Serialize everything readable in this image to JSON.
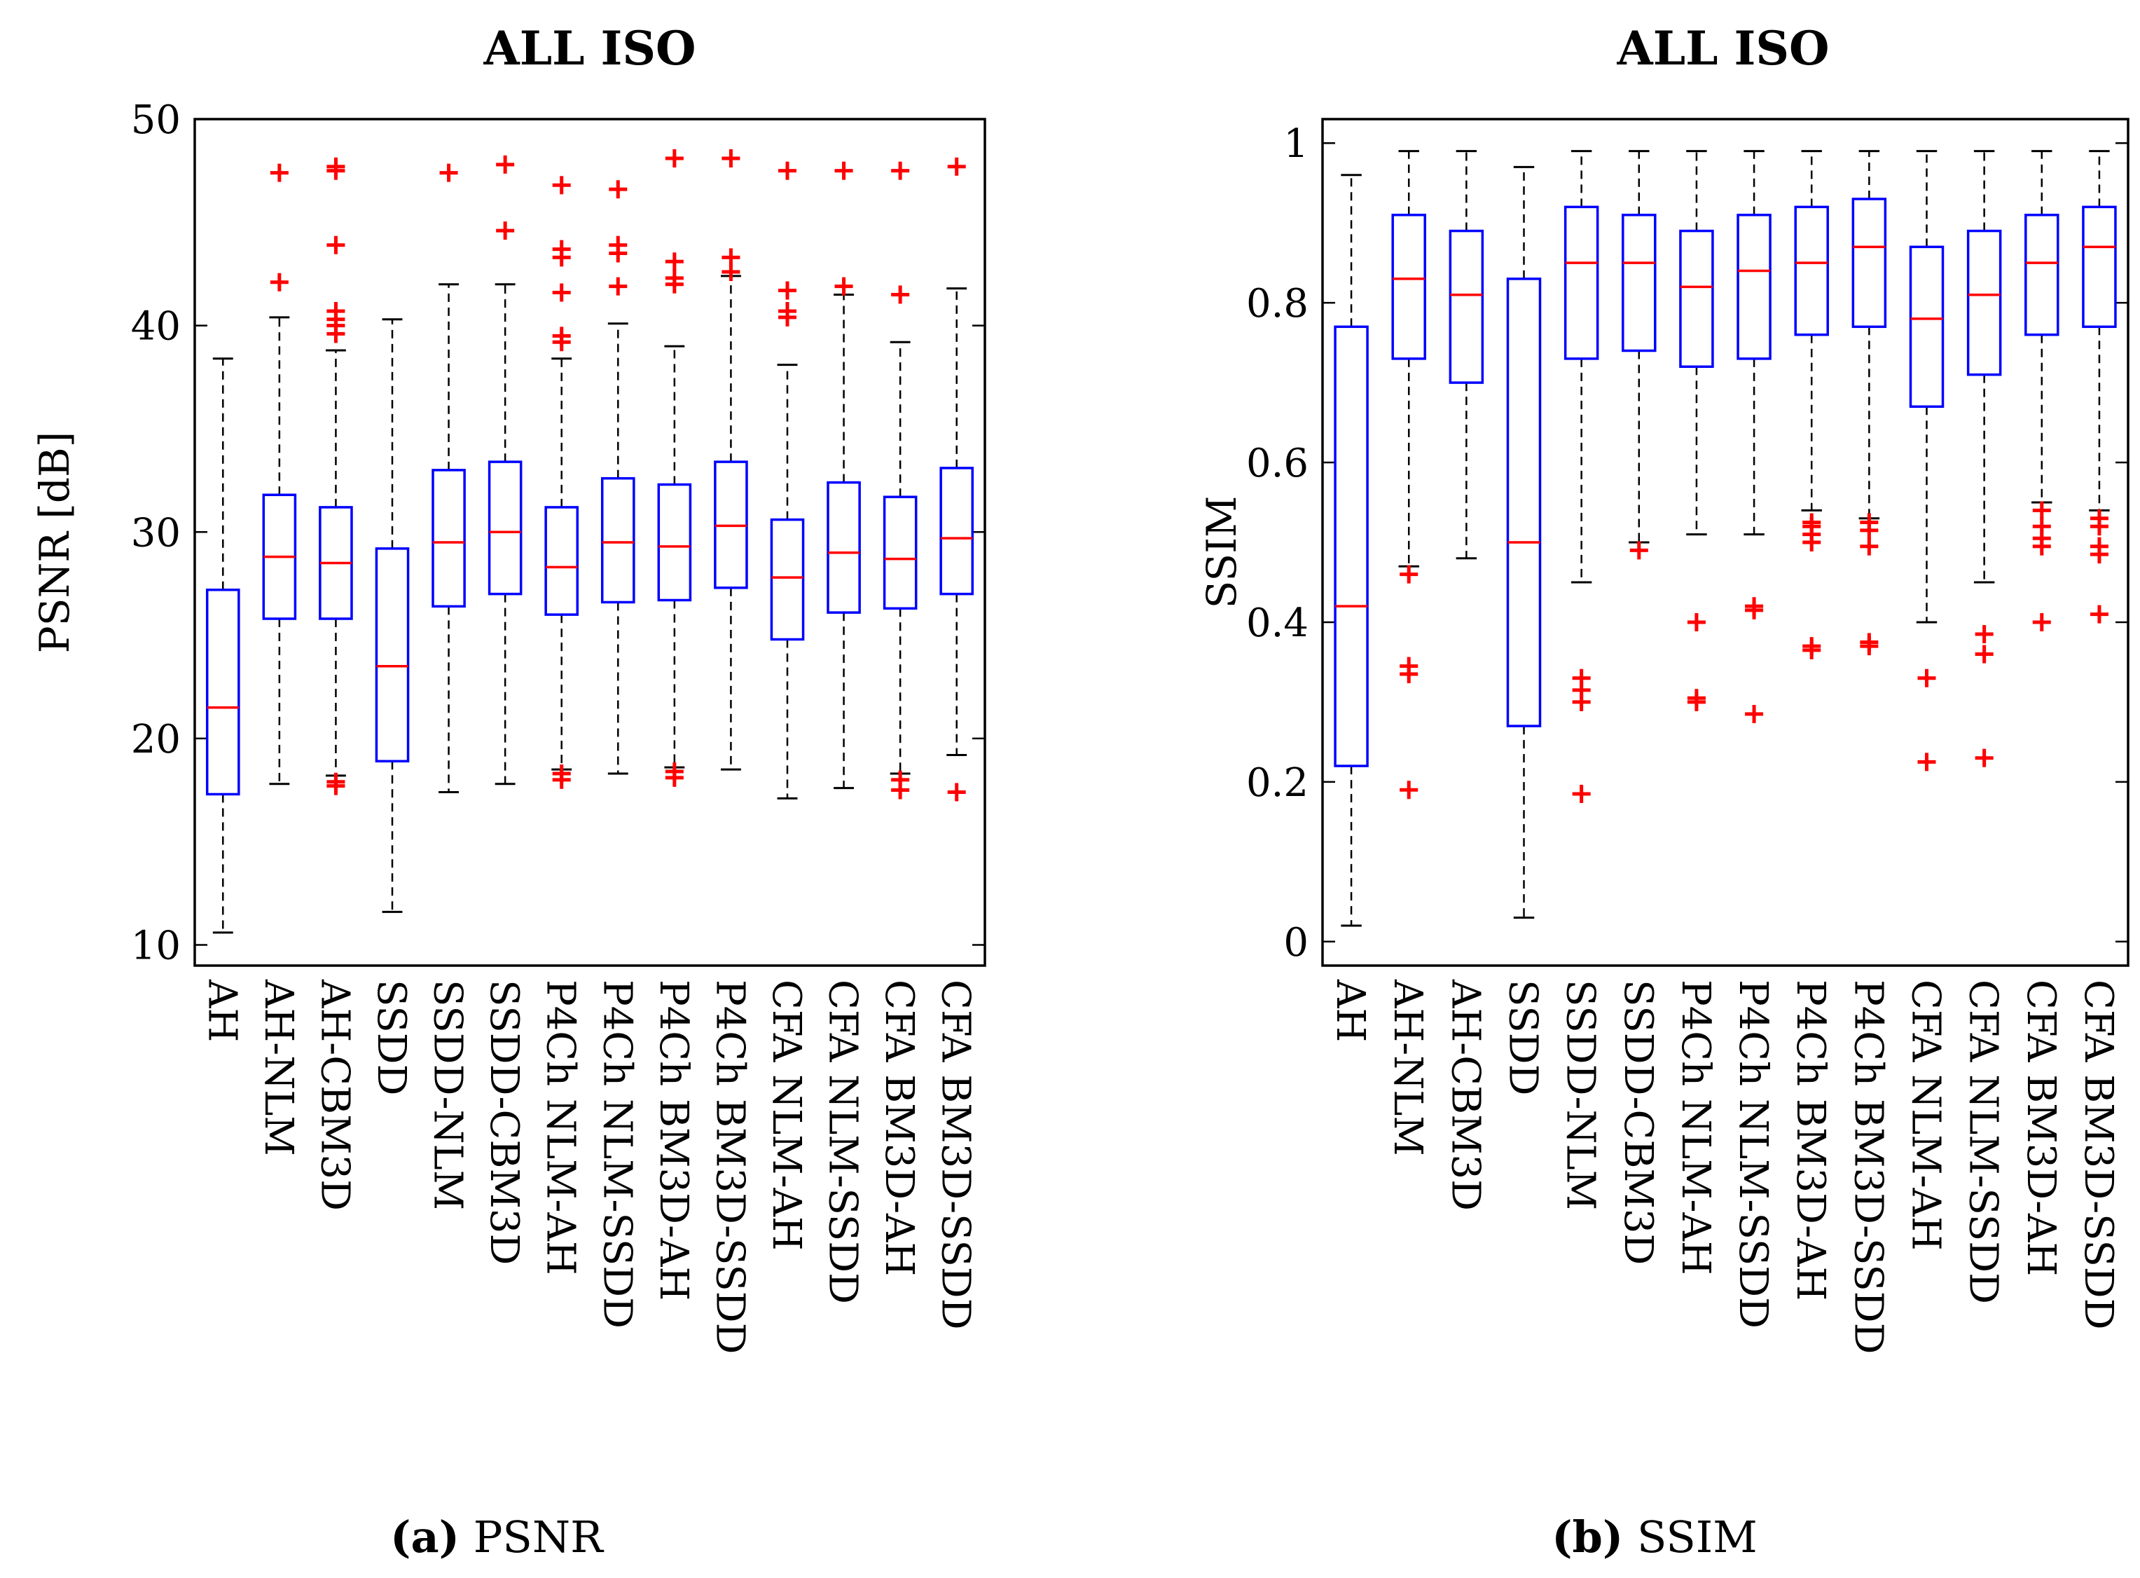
{
  "colors": {
    "box": "#0000ff",
    "median": "#ff0000",
    "outlier": "#ff0000",
    "whisker": "#000000",
    "frame": "#000000"
  },
  "chart_data": [
    {
      "type": "box",
      "title": "ALL ISO",
      "ylabel": "PSNR [dB]",
      "xlabel": "",
      "ylim": [
        9,
        50
      ],
      "yticks": [
        10,
        20,
        30,
        40,
        50
      ],
      "ytick_labels": [
        "10",
        "20",
        "30",
        "40",
        "50"
      ],
      "caption_letter": "(a)",
      "caption_text": "PSNR",
      "categories": [
        "AH",
        "AH-NLM",
        "AH-CBM3D",
        "SSDD",
        "SSDD-NLM",
        "SSDD-CBM3D",
        "P4Ch NLM-AH",
        "P4Ch NLM-SSDD",
        "P4Ch BM3D-AH",
        "P4Ch BM3D-SSDD",
        "CFA NLM-AH",
        "CFA NLM-SSDD",
        "CFA BM3D-AH",
        "CFA BM3D-SSDD"
      ],
      "boxes": [
        {
          "whislo": 10.6,
          "q1": 17.3,
          "med": 21.5,
          "q3": 27.2,
          "whishi": 38.4,
          "fliers": []
        },
        {
          "whislo": 17.8,
          "q1": 25.8,
          "med": 28.8,
          "q3": 31.8,
          "whishi": 40.4,
          "fliers": [
            42.1,
            47.4
          ]
        },
        {
          "whislo": 18.2,
          "q1": 25.8,
          "med": 28.5,
          "q3": 31.2,
          "whishi": 38.8,
          "fliers": [
            17.7,
            17.9,
            39.6,
            40.0,
            40.3,
            40.7,
            43.9,
            47.5,
            47.7
          ]
        },
        {
          "whislo": 11.6,
          "q1": 18.9,
          "med": 23.5,
          "q3": 29.2,
          "whishi": 40.3,
          "fliers": []
        },
        {
          "whislo": 17.4,
          "q1": 26.4,
          "med": 29.5,
          "q3": 33.0,
          "whishi": 42.0,
          "fliers": [
            47.4
          ]
        },
        {
          "whislo": 17.8,
          "q1": 27.0,
          "med": 30.0,
          "q3": 33.4,
          "whishi": 42.0,
          "fliers": [
            44.6,
            47.8
          ]
        },
        {
          "whislo": 18.5,
          "q1": 26.0,
          "med": 28.3,
          "q3": 31.2,
          "whishi": 38.4,
          "fliers": [
            18.0,
            18.3,
            39.2,
            39.5,
            41.6,
            43.3,
            43.7,
            46.8
          ]
        },
        {
          "whislo": 18.3,
          "q1": 26.6,
          "med": 29.5,
          "q3": 32.6,
          "whishi": 40.1,
          "fliers": [
            41.9,
            43.5,
            43.9,
            46.6
          ]
        },
        {
          "whislo": 18.6,
          "q1": 26.7,
          "med": 29.3,
          "q3": 32.3,
          "whishi": 39.0,
          "fliers": [
            18.1,
            18.4,
            42.0,
            42.3,
            43.1,
            48.1
          ]
        },
        {
          "whislo": 18.5,
          "q1": 27.3,
          "med": 30.3,
          "q3": 33.4,
          "whishi": 42.4,
          "fliers": [
            42.6,
            43.3,
            48.1
          ]
        },
        {
          "whislo": 17.1,
          "q1": 24.8,
          "med": 27.8,
          "q3": 30.6,
          "whishi": 38.1,
          "fliers": [
            40.4,
            40.7,
            41.7,
            47.5
          ]
        },
        {
          "whislo": 17.6,
          "q1": 26.1,
          "med": 29.0,
          "q3": 32.4,
          "whishi": 41.5,
          "fliers": [
            41.9,
            47.5
          ]
        },
        {
          "whislo": 18.3,
          "q1": 26.3,
          "med": 28.7,
          "q3": 31.7,
          "whishi": 39.2,
          "fliers": [
            17.5,
            18.0,
            41.5,
            47.5
          ]
        },
        {
          "whislo": 19.2,
          "q1": 27.0,
          "med": 29.7,
          "q3": 33.1,
          "whishi": 41.8,
          "fliers": [
            17.4,
            47.7
          ]
        }
      ]
    },
    {
      "type": "box",
      "title": "ALL ISO",
      "ylabel": "SSIM",
      "xlabel": "",
      "ylim": [
        -0.03,
        1.03
      ],
      "yticks": [
        0,
        0.2,
        0.4,
        0.6,
        0.8,
        1
      ],
      "ytick_labels": [
        "0",
        "0.2",
        "0.4",
        "0.6",
        "0.8",
        "1"
      ],
      "caption_letter": "(b)",
      "caption_text": "SSIM",
      "categories": [
        "AH",
        "AH-NLM",
        "AH-CBM3D",
        "SSDD",
        "SSDD-NLM",
        "SSDD-CBM3D",
        "P4Ch NLM-AH",
        "P4Ch NLM-SSDD",
        "P4Ch BM3D-AH",
        "P4Ch BM3D-SSDD",
        "CFA NLM-AH",
        "CFA NLM-SSDD",
        "CFA BM3D-AH",
        "CFA BM3D-SSDD"
      ],
      "boxes": [
        {
          "whislo": 0.02,
          "q1": 0.22,
          "med": 0.42,
          "q3": 0.77,
          "whishi": 0.96,
          "fliers": []
        },
        {
          "whislo": 0.47,
          "q1": 0.73,
          "med": 0.83,
          "q3": 0.91,
          "whishi": 0.99,
          "fliers": [
            0.19,
            0.335,
            0.345,
            0.46
          ]
        },
        {
          "whislo": 0.48,
          "q1": 0.7,
          "med": 0.81,
          "q3": 0.89,
          "whishi": 0.99,
          "fliers": []
        },
        {
          "whislo": 0.03,
          "q1": 0.27,
          "med": 0.5,
          "q3": 0.83,
          "whishi": 0.97,
          "fliers": []
        },
        {
          "whislo": 0.45,
          "q1": 0.73,
          "med": 0.85,
          "q3": 0.92,
          "whishi": 0.99,
          "fliers": [
            0.185,
            0.3,
            0.315,
            0.33
          ]
        },
        {
          "whislo": 0.5,
          "q1": 0.74,
          "med": 0.85,
          "q3": 0.91,
          "whishi": 0.99,
          "fliers": [
            0.49
          ]
        },
        {
          "whislo": 0.51,
          "q1": 0.72,
          "med": 0.82,
          "q3": 0.89,
          "whishi": 0.99,
          "fliers": [
            0.3,
            0.305,
            0.4
          ]
        },
        {
          "whislo": 0.51,
          "q1": 0.73,
          "med": 0.84,
          "q3": 0.91,
          "whishi": 0.99,
          "fliers": [
            0.285,
            0.415,
            0.42
          ]
        },
        {
          "whislo": 0.54,
          "q1": 0.76,
          "med": 0.85,
          "q3": 0.92,
          "whishi": 0.99,
          "fliers": [
            0.365,
            0.37,
            0.5,
            0.51,
            0.52,
            0.525
          ]
        },
        {
          "whislo": 0.53,
          "q1": 0.77,
          "med": 0.87,
          "q3": 0.93,
          "whishi": 0.99,
          "fliers": [
            0.37,
            0.375,
            0.495,
            0.515,
            0.525
          ]
        },
        {
          "whislo": 0.4,
          "q1": 0.67,
          "med": 0.78,
          "q3": 0.87,
          "whishi": 0.99,
          "fliers": [
            0.225,
            0.33
          ]
        },
        {
          "whislo": 0.45,
          "q1": 0.71,
          "med": 0.81,
          "q3": 0.89,
          "whishi": 0.99,
          "fliers": [
            0.23,
            0.36,
            0.385
          ]
        },
        {
          "whislo": 0.55,
          "q1": 0.76,
          "med": 0.85,
          "q3": 0.91,
          "whishi": 0.99,
          "fliers": [
            0.4,
            0.495,
            0.505,
            0.52,
            0.54
          ]
        },
        {
          "whislo": 0.54,
          "q1": 0.77,
          "med": 0.87,
          "q3": 0.92,
          "whishi": 0.99,
          "fliers": [
            0.41,
            0.485,
            0.495,
            0.52,
            0.53
          ]
        }
      ]
    }
  ]
}
